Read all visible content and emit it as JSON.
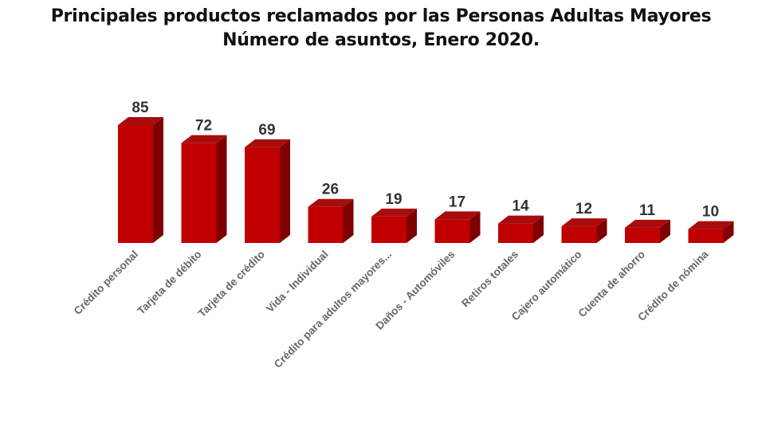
{
  "chart_data": {
    "type": "bar",
    "title": "Principales productos reclamados por las Personas Adultas Mayores",
    "subtitle": "Número de asuntos, Enero 2020.",
    "categories": [
      "Crédito personal",
      "Tarjeta de débito",
      "Tarjeta de crédito",
      "Vida - Individual",
      "Crédito para adultos mayores...",
      "Daños - Automóviles",
      "Retiros totales",
      "Cajero automático",
      "Cuenta de ahorro",
      "Crédito de nómina"
    ],
    "values": [
      85,
      72,
      69,
      26,
      19,
      17,
      14,
      12,
      11,
      10
    ],
    "xlabel": "",
    "ylabel": "",
    "ylim": [
      0,
      85
    ],
    "grid": false,
    "colors": {
      "front": "#c00000",
      "side": "#7f0000",
      "top": "#a80c0c"
    }
  }
}
